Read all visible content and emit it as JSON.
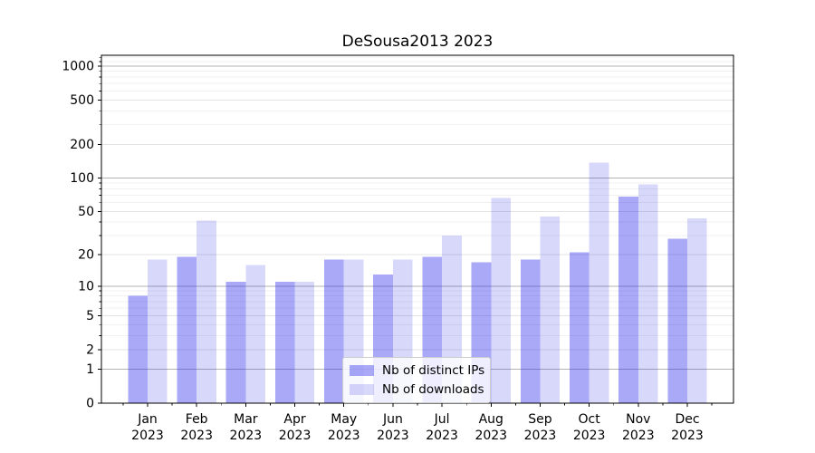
{
  "title": "DeSousa2013 2023",
  "chart_data": {
    "type": "bar",
    "title": "DeSousa2013 2023",
    "categories": [
      "Jan 2023",
      "Feb 2023",
      "Mar 2023",
      "Apr 2023",
      "May 2023",
      "Jun 2023",
      "Jul 2023",
      "Aug 2023",
      "Sep 2023",
      "Oct 2023",
      "Nov 2023",
      "Dec 2023"
    ],
    "series": [
      {
        "name": "Nb of distinct IPs",
        "color": "rgba(40,40,235,0.40)",
        "values": [
          8,
          19,
          11,
          11,
          18,
          13,
          19,
          17,
          18,
          21,
          68,
          28
        ]
      },
      {
        "name": "Nb of downloads",
        "color": "rgba(40,40,235,0.18)",
        "values": [
          18,
          41,
          16,
          11,
          18,
          18,
          30,
          66,
          45,
          138,
          88,
          43
        ]
      }
    ],
    "xlabel": "",
    "ylabel": "",
    "yscale": "log1p",
    "y_ticks": [
      0,
      1,
      2,
      5,
      10,
      20,
      50,
      100,
      200,
      500,
      1000
    ],
    "ylim": [
      0,
      1250
    ],
    "grid": true,
    "legend_position": "lower center"
  },
  "colors": {
    "background": "#ffffff",
    "spine": "#000000",
    "grid_decade": "#b3b3b3",
    "grid_major": "#e3e3e3",
    "grid_minor": "#f1f1f1",
    "tick_label": "#000000",
    "legend_border": "#cccccc"
  }
}
